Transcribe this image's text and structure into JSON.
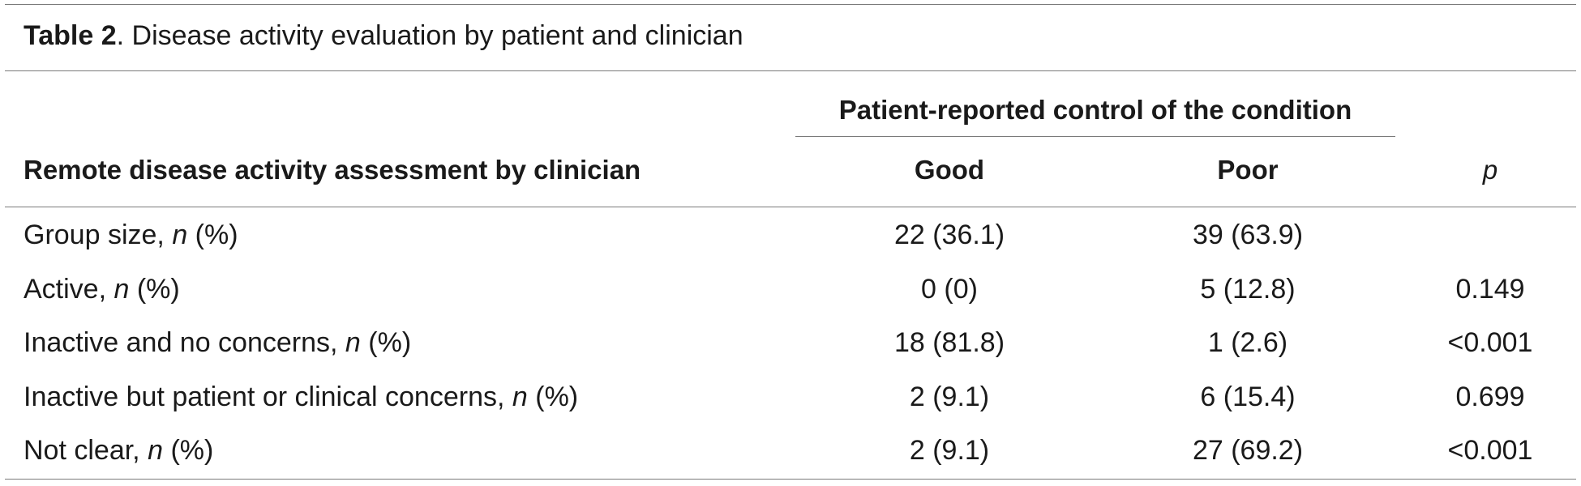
{
  "table": {
    "caption": {
      "label": "Table 2",
      "text": ". Disease activity evaluation by patient and clinician"
    },
    "spanner": "Patient-reported control of the condition",
    "headers": {
      "row_label": "Remote disease activity assessment by clinician",
      "good": "Good",
      "poor": "Poor",
      "p": "p"
    },
    "rows": [
      {
        "label": "Group size, ",
        "n": "n",
        "suffix": " (%)",
        "good": "22 (36.1)",
        "poor": "39 (63.9)",
        "p": ""
      },
      {
        "label": "Active, ",
        "n": "n",
        "suffix": " (%)",
        "good": "0 (0)",
        "poor": "5 (12.8)",
        "p": "0.149"
      },
      {
        "label": "Inactive and no concerns, ",
        "n": "n",
        "suffix": " (%)",
        "good": "18 (81.8)",
        "poor": "1 (2.6)",
        "p": "<0.001"
      },
      {
        "label": "Inactive but patient or clinical concerns, ",
        "n": "n",
        "suffix": " (%)",
        "good": "2 (9.1)",
        "poor": "6 (15.4)",
        "p": "0.699"
      },
      {
        "label": "Not clear, ",
        "n": "n",
        "suffix": " (%)",
        "good": "2 (9.1)",
        "poor": "27 (69.2)",
        "p": "<0.001"
      }
    ]
  }
}
